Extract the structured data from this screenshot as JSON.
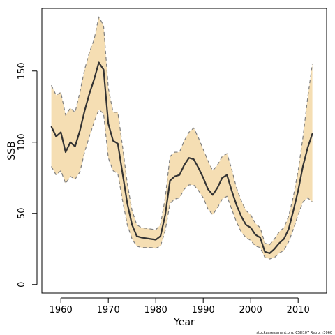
{
  "chart_data": {
    "type": "area",
    "title": "",
    "xlabel": "Year",
    "ylabel": "SSB",
    "xlim": [
      1956,
      2016
    ],
    "ylim": [
      -6,
      194
    ],
    "xticks": [
      1960,
      1970,
      1980,
      1990,
      2000,
      2010
    ],
    "yticks": [
      0,
      50,
      100,
      150
    ],
    "grid": false,
    "legend": "none",
    "credit": "stockassessment.org, CSH107 Retro, r3060",
    "colors": {
      "band": "#f5deb3",
      "bound_line": "#7f7f7f",
      "estimate_line": "#333333",
      "axis": "#000000"
    },
    "x": [
      1958,
      1959,
      1960,
      1961,
      1962,
      1963,
      1964,
      1965,
      1966,
      1967,
      1968,
      1969,
      1970,
      1971,
      1972,
      1973,
      1974,
      1975,
      1976,
      1977,
      1978,
      1979,
      1980,
      1981,
      1982,
      1983,
      1984,
      1985,
      1986,
      1987,
      1988,
      1989,
      1990,
      1991,
      1992,
      1993,
      1994,
      1995,
      1996,
      1997,
      1998,
      1999,
      2000,
      2001,
      2002,
      2003,
      2004,
      2005,
      2006,
      2007,
      2008,
      2009,
      2010,
      2011,
      2012,
      2013
    ],
    "series": [
      {
        "name": "",
        "role": "estimate",
        "values": [
          111,
          104,
          107,
          93,
          100,
          97,
          108,
          122,
          134,
          144,
          156,
          151,
          113,
          101,
          99,
          78,
          57,
          42,
          34,
          33,
          32.5,
          32,
          31.5,
          34,
          49,
          73,
          76,
          77,
          84,
          89,
          88,
          82,
          75,
          67,
          63,
          68,
          75,
          77,
          66,
          56,
          48,
          42,
          40,
          35,
          33,
          23,
          22,
          25,
          29,
          32,
          39,
          52,
          66,
          83,
          96,
          106
        ]
      },
      {
        "name": "",
        "role": "upper",
        "values": [
          140,
          133,
          135,
          119,
          124,
          121,
          135,
          151,
          163,
          172,
          188,
          182,
          138,
          121,
          121,
          97,
          71,
          52,
          42,
          40,
          39.5,
          39,
          38.5,
          42,
          61,
          90,
          93,
          93,
          101,
          107,
          110,
          103,
          95,
          87,
          80,
          84,
          90,
          92,
          81,
          68,
          59,
          52,
          49,
          43,
          40,
          29,
          28,
          32,
          37,
          40,
          48,
          62,
          80,
          103,
          131,
          155
        ]
      },
      {
        "name": "",
        "role": "lower",
        "values": [
          83,
          77,
          80,
          71,
          76,
          74,
          79,
          93,
          104,
          114,
          123,
          120,
          89,
          80,
          78,
          59,
          42,
          32,
          27,
          26,
          26,
          26,
          25.5,
          27,
          38,
          57,
          60,
          61,
          67,
          70,
          70,
          66,
          61,
          53,
          49,
          54,
          60,
          62,
          53,
          44,
          37,
          33,
          31,
          27,
          26,
          19,
          18,
          19,
          22,
          24,
          30,
          39,
          49,
          58,
          61,
          58
        ]
      }
    ]
  }
}
